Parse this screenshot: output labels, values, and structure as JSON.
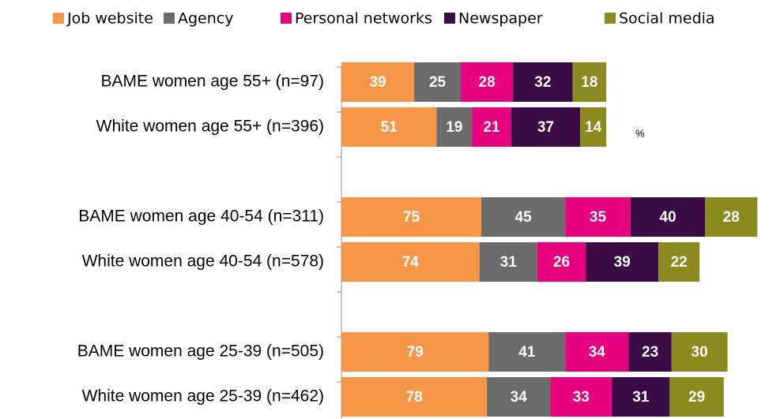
{
  "chart_data": {
    "type": "stacked-bar",
    "orientation": "horizontal",
    "annotation": "%",
    "categories": [
      "BAME women age 55+ (n=97)",
      "White women age 55+ (n=396)",
      null,
      "BAME women age 40-54 (n=311)",
      "White women age 40-54 (n=578)",
      null,
      "BAME women age 25-39 (n=505)",
      "White women age 25-39 (n=462)"
    ],
    "series": [
      {
        "name": "Job website",
        "color": "#f79646",
        "values": [
          39,
          51,
          null,
          75,
          74,
          null,
          79,
          78
        ]
      },
      {
        "name": "Agency",
        "color": "#6b6b6b",
        "values": [
          25,
          19,
          null,
          45,
          31,
          null,
          41,
          34
        ]
      },
      {
        "name": "Personal networks",
        "color": "#e6007e",
        "values": [
          28,
          21,
          null,
          35,
          26,
          null,
          34,
          33
        ]
      },
      {
        "name": "Newspaper",
        "color": "#3a0b44",
        "values": [
          32,
          37,
          null,
          40,
          39,
          null,
          23,
          31
        ]
      },
      {
        "name": "Social media",
        "color": "#8b8a1f",
        "values": [
          18,
          14,
          null,
          28,
          22,
          null,
          30,
          29
        ]
      }
    ],
    "legend": "top"
  }
}
